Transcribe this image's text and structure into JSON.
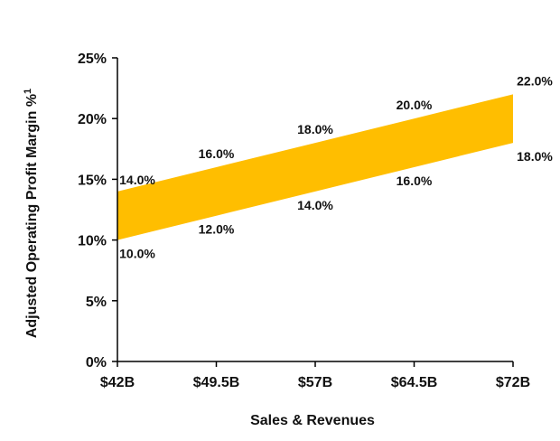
{
  "chart_data": {
    "type": "area",
    "categories": [
      "$42B",
      "$49.5B",
      "$57B",
      "$64.5B",
      "$72B"
    ],
    "x": [
      42,
      49.5,
      57,
      64.5,
      72
    ],
    "series": [
      {
        "values": [
          10.0,
          12.0,
          14.0,
          16.0,
          18.0
        ],
        "labels": [
          "10.0%",
          "12.0%",
          "14.0%",
          "16.0%",
          "18.0%"
        ]
      },
      {
        "values": [
          14.0,
          16.0,
          18.0,
          20.0,
          22.0
        ],
        "labels": [
          "14.0%",
          "16.0%",
          "18.0%",
          "20.0%",
          "22.0%"
        ]
      }
    ],
    "band_color": "#FFBE00",
    "xlabel": "Sales & Revenues",
    "ylabel": "Adjusted Operating Profit Margin %",
    "ylabel_superscript": "1",
    "ylim": [
      0,
      25
    ],
    "yticks": [
      0,
      5,
      10,
      15,
      20,
      25
    ],
    "ytick_labels": [
      "0%",
      "5%",
      "10%",
      "15%",
      "20%",
      "25%"
    ],
    "grid": false,
    "legend": "none"
  }
}
